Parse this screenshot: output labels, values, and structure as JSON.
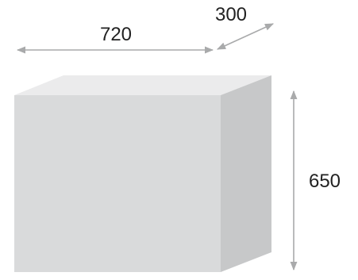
{
  "dimensions": {
    "width": {
      "value": "720"
    },
    "depth": {
      "value": "300"
    },
    "height": {
      "value": "650"
    }
  },
  "colors": {
    "front_face": "#d9dadb",
    "top_face": "#ebebec",
    "side_face": "#c7c8c9",
    "arrow": "#a9aaab",
    "text": "#222222"
  }
}
